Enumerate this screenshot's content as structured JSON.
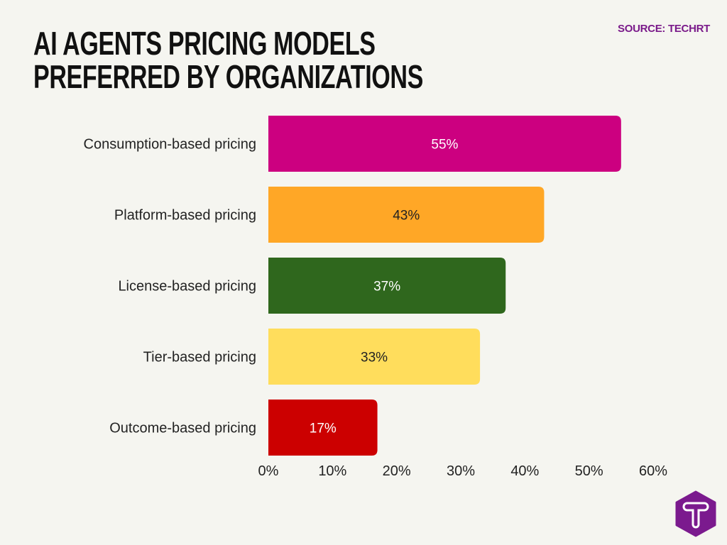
{
  "title": "AI Agents Pricing Models Preferred by Organizations",
  "source": "SOURCE: TECHRT",
  "logo": {
    "letter": "T",
    "color": "#7b1a8e"
  },
  "chart_data": {
    "type": "bar",
    "orientation": "horizontal",
    "title": "AI Agents Pricing Models Preferred by Organizations",
    "categories": [
      "Consumption-based pricing",
      "Platform-based pricing",
      "License-based pricing",
      "Tier-based pricing",
      "Outcome-based pricing"
    ],
    "values": [
      55,
      43,
      37,
      33,
      17
    ],
    "data_labels": [
      "55%",
      "43%",
      "37%",
      "33%",
      "17%"
    ],
    "colors": [
      "#cc0080",
      "#ffa726",
      "#2f671d",
      "#ffdd5c",
      "#cc0000"
    ],
    "label_colors": [
      "#ffffff",
      "#222222",
      "#ffffff",
      "#222222",
      "#ffffff"
    ],
    "xlim": [
      0,
      60
    ],
    "xticks": [
      "0%",
      "10%",
      "20%",
      "30%",
      "40%",
      "50%",
      "60%"
    ],
    "grid": false,
    "legend": "none"
  }
}
